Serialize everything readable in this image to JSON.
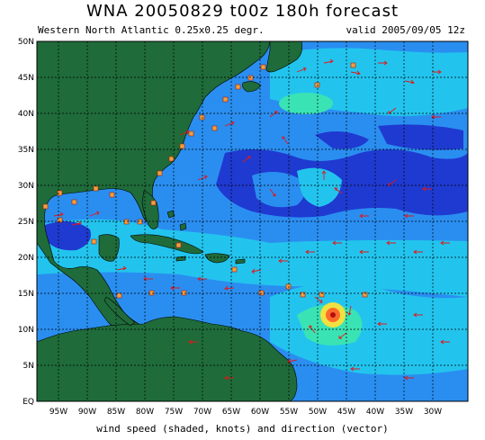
{
  "title": "WNA 20050829 t00z 180h forecast",
  "subtitle_left": "Western North Atlantic 0.25x0.25 degr.",
  "subtitle_right": "valid 2005/09/05 12z",
  "footer": "wind speed (shaded, knots) and direction (vector)",
  "lat_labels": [
    "50N",
    "45N",
    "40N",
    "35N",
    "30N",
    "25N",
    "20N",
    "15N",
    "10N",
    "5N",
    "EQ"
  ],
  "lon_labels": [
    "95W",
    "90W",
    "85W",
    "80W",
    "75W",
    "70W",
    "65W",
    "60W",
    "55W",
    "50W",
    "45W",
    "40W",
    "35W",
    "30W"
  ],
  "colors": {
    "land": "#1f6b3a",
    "ocean_calm": "#1f3ad0",
    "ocean_mid": "#2a8ef0",
    "ocean_fresh": "#22c4ee",
    "ocean_strong": "#3ae3b4",
    "storm_core": "#ff6a2a",
    "arrows": "#e01818",
    "buoys": "#f0a040",
    "grid": "#000000"
  }
}
